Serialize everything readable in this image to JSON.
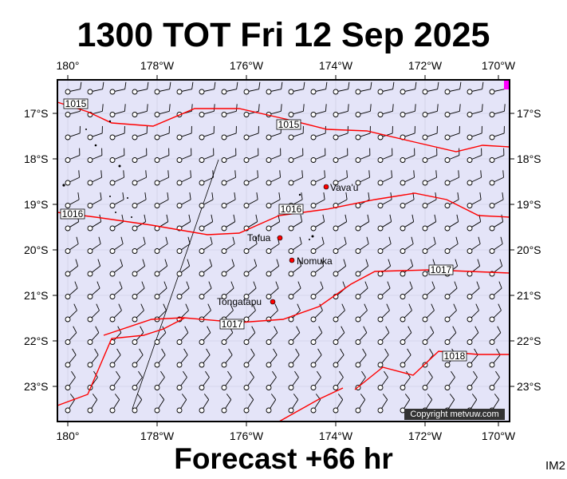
{
  "title": "1300 TOT Fri 12 Sep 2025",
  "subtitle": "Forecast +66 hr",
  "chart_code": "IM2",
  "copyright": "Copyright metvuw.com",
  "lon_labels": [
    "180°",
    "178°W",
    "176°W",
    "174°W",
    "172°W",
    "170°W"
  ],
  "lat_labels": [
    "17°S",
    "18°S",
    "19°S",
    "20°S",
    "21°S",
    "22°S",
    "23°S"
  ],
  "places": [
    {
      "name": "Vava'u",
      "lon": -174.0,
      "lat": -18.65
    },
    {
      "name": "Tofua",
      "lon": -175.05,
      "lat": -19.75
    },
    {
      "name": "Nomuka",
      "lon": -174.8,
      "lat": -20.25
    },
    {
      "name": "Tongatapu",
      "lon": -175.2,
      "lat": -21.13
    }
  ],
  "isobar_labels": [
    "1015",
    "1015",
    "1016",
    "1016",
    "1017",
    "1017",
    "1018"
  ],
  "colors": {
    "sea": "#e4e4f8",
    "isobar": "#ff0000",
    "place": "#ff0000",
    "corner": "#ff00ff"
  }
}
